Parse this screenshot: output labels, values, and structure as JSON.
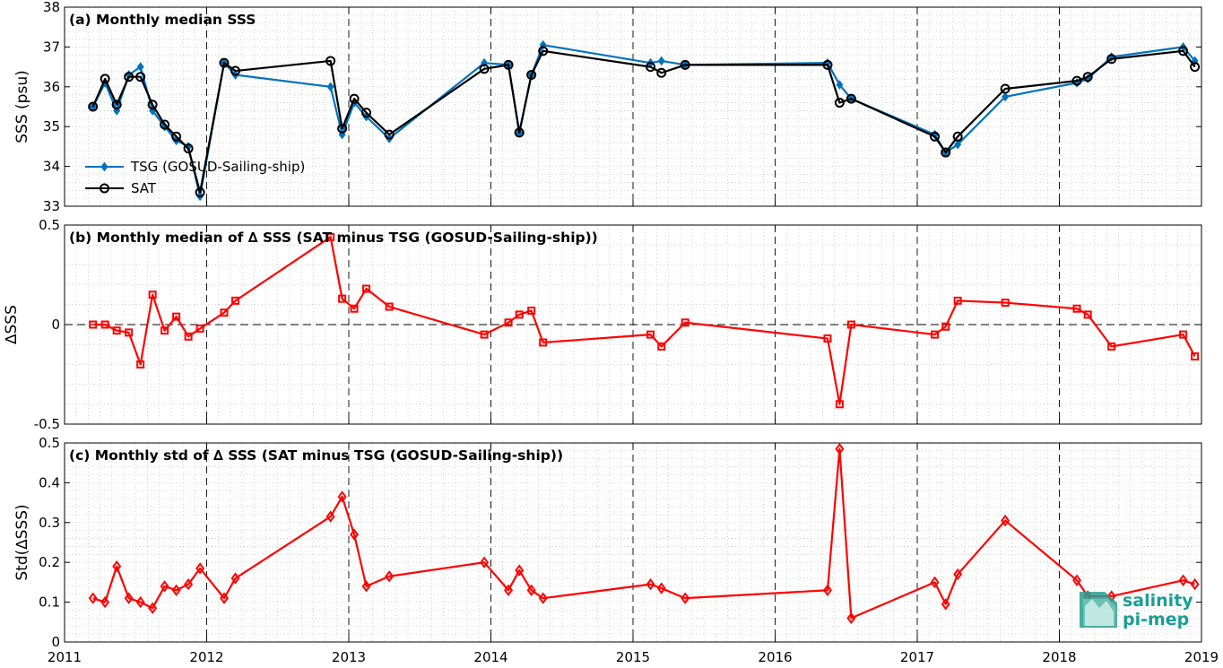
{
  "chart_data": [
    {
      "type": "line",
      "title": "(a) Monthly median SSS",
      "ylabel": "SSS (psu)",
      "ylim": [
        33,
        38
      ],
      "yticks": [
        "33",
        "34",
        "35",
        "36",
        "37",
        "38"
      ],
      "xlim": [
        "2011-01-01",
        "2019-01-01"
      ],
      "grid": "dotted minor + dashed major year lines",
      "legend_position": "bottom-left",
      "legend": [
        "TSG (GOSUD-Sailing-ship)",
        "SAT"
      ],
      "series": [
        {
          "name": "TSG (GOSUD-Sailing-ship)",
          "color": "#0072bd",
          "marker": "diamond",
          "x": [
            "2011-03-15",
            "2011-04-15",
            "2011-05-15",
            "2011-06-15",
            "2011-07-15",
            "2011-08-15",
            "2011-09-15",
            "2011-10-15",
            "2011-11-15",
            "2011-12-15",
            "2012-02-15",
            "2012-03-15",
            "2012-11-15",
            "2012-12-15",
            "2013-01-15",
            "2013-02-15",
            "2013-04-15",
            "2013-12-15",
            "2014-02-15",
            "2014-03-15",
            "2014-04-15",
            "2014-05-15",
            "2015-02-15",
            "2015-03-15",
            "2015-05-15",
            "2016-05-15",
            "2016-06-15",
            "2016-07-15",
            "2017-02-15",
            "2017-03-15",
            "2017-04-15",
            "2017-08-15",
            "2018-02-15",
            "2018-03-15",
            "2018-05-15",
            "2018-11-15",
            "2018-12-15"
          ],
          "values": [
            35.5,
            36.1,
            35.4,
            36.3,
            36.5,
            35.4,
            35.0,
            34.65,
            34.5,
            33.25,
            36.6,
            36.3,
            36.0,
            34.8,
            35.6,
            35.25,
            34.7,
            36.6,
            36.55,
            34.85,
            36.3,
            37.05,
            36.6,
            36.65,
            36.55,
            36.6,
            36.05,
            35.7,
            34.8,
            34.35,
            34.55,
            35.75,
            36.1,
            36.2,
            36.75,
            37.0,
            36.65
          ]
        },
        {
          "name": "SAT",
          "color": "#000000",
          "marker": "circle",
          "x": [
            "2011-03-15",
            "2011-04-15",
            "2011-05-15",
            "2011-06-15",
            "2011-07-15",
            "2011-08-15",
            "2011-09-15",
            "2011-10-15",
            "2011-11-15",
            "2011-12-15",
            "2012-02-15",
            "2012-03-15",
            "2012-11-15",
            "2012-12-15",
            "2013-01-15",
            "2013-02-15",
            "2013-04-15",
            "2013-12-15",
            "2014-02-15",
            "2014-03-15",
            "2014-04-15",
            "2014-05-15",
            "2015-02-15",
            "2015-03-15",
            "2015-05-15",
            "2016-05-15",
            "2016-06-15",
            "2016-07-15",
            "2017-02-15",
            "2017-03-15",
            "2017-04-15",
            "2017-08-15",
            "2018-02-15",
            "2018-03-15",
            "2018-05-15",
            "2018-11-15",
            "2018-12-15"
          ],
          "values": [
            35.5,
            36.2,
            35.55,
            36.25,
            36.25,
            35.55,
            35.05,
            34.75,
            34.45,
            33.35,
            36.6,
            36.4,
            36.65,
            34.95,
            35.7,
            35.35,
            34.8,
            36.45,
            36.55,
            34.85,
            36.3,
            36.9,
            36.5,
            36.35,
            36.55,
            36.55,
            35.6,
            35.7,
            34.75,
            34.35,
            34.75,
            35.95,
            36.15,
            36.25,
            36.7,
            36.9,
            36.5
          ]
        }
      ]
    },
    {
      "type": "line",
      "title": "(b) Monthly median of ∆ SSS (SAT minus TSG (GOSUD-Sailing-ship))",
      "ylabel": "∆SSS",
      "ylim": [
        -0.5,
        0.5
      ],
      "yticks": [
        "-0.5",
        "0",
        "0.5"
      ],
      "xlim": [
        "2011-01-01",
        "2019-01-01"
      ],
      "reference_line": 0,
      "series": [
        {
          "color": "#ff0000",
          "marker": "square",
          "x": [
            "2011-03-15",
            "2011-04-15",
            "2011-05-15",
            "2011-06-15",
            "2011-07-15",
            "2011-08-15",
            "2011-09-15",
            "2011-10-15",
            "2011-11-15",
            "2011-12-15",
            "2012-02-15",
            "2012-03-15",
            "2012-11-15",
            "2012-12-15",
            "2013-01-15",
            "2013-02-15",
            "2013-04-15",
            "2013-12-15",
            "2014-02-15",
            "2014-03-15",
            "2014-04-15",
            "2014-05-15",
            "2015-02-15",
            "2015-03-15",
            "2015-05-15",
            "2016-05-15",
            "2016-06-15",
            "2016-07-15",
            "2017-02-15",
            "2017-03-15",
            "2017-04-15",
            "2017-08-15",
            "2018-02-15",
            "2018-03-15",
            "2018-05-15",
            "2018-11-15",
            "2018-12-15"
          ],
          "values": [
            0.0,
            0.0,
            -0.03,
            -0.04,
            -0.2,
            0.15,
            -0.03,
            0.04,
            -0.06,
            -0.02,
            0.06,
            0.12,
            0.44,
            0.13,
            0.08,
            0.18,
            0.09,
            -0.05,
            0.01,
            0.05,
            0.07,
            -0.09,
            -0.05,
            -0.11,
            0.01,
            -0.07,
            -0.4,
            0.0,
            -0.05,
            -0.01,
            0.12,
            0.11,
            0.08,
            0.05,
            -0.11,
            -0.05,
            -0.16
          ]
        }
      ]
    },
    {
      "type": "line",
      "title": "(c) Monthly std of ∆ SSS (SAT minus TSG (GOSUD-Sailing-ship))",
      "ylabel": "Std(∆SSS)",
      "ylim": [
        0,
        0.5
      ],
      "yticks": [
        "0",
        "0.1",
        "0.2",
        "0.3",
        "0.4",
        "0.5"
      ],
      "xlim": [
        "2011-01-01",
        "2019-01-01"
      ],
      "xticks": [
        "2011",
        "2012",
        "2013",
        "2014",
        "2015",
        "2016",
        "2017",
        "2018",
        "2019"
      ],
      "series": [
        {
          "color": "#ff0000",
          "marker": "diamond",
          "x": [
            "2011-03-15",
            "2011-04-15",
            "2011-05-15",
            "2011-06-15",
            "2011-07-15",
            "2011-08-15",
            "2011-09-15",
            "2011-10-15",
            "2011-11-15",
            "2011-12-15",
            "2012-02-15",
            "2012-03-15",
            "2012-11-15",
            "2012-12-15",
            "2013-01-15",
            "2013-02-15",
            "2013-04-15",
            "2013-12-15",
            "2014-02-15",
            "2014-03-15",
            "2014-04-15",
            "2014-05-15",
            "2015-02-15",
            "2015-03-15",
            "2015-05-15",
            "2016-05-15",
            "2016-06-15",
            "2016-07-15",
            "2017-02-15",
            "2017-03-15",
            "2017-04-15",
            "2017-08-15",
            "2018-02-15",
            "2018-03-15",
            "2018-05-15",
            "2018-11-15",
            "2018-12-15"
          ],
          "values": [
            0.11,
            0.1,
            0.19,
            0.11,
            0.1,
            0.085,
            0.14,
            0.13,
            0.145,
            0.185,
            0.11,
            0.16,
            0.315,
            0.365,
            0.27,
            0.14,
            0.165,
            0.2,
            0.13,
            0.18,
            0.13,
            0.11,
            0.145,
            0.135,
            0.11,
            0.13,
            0.485,
            0.06,
            0.15,
            0.095,
            0.17,
            0.305,
            0.155,
            0.115,
            0.115,
            0.155,
            0.145
          ]
        }
      ]
    }
  ],
  "logo": {
    "line1": "salinity",
    "line2": "pi-mep"
  }
}
